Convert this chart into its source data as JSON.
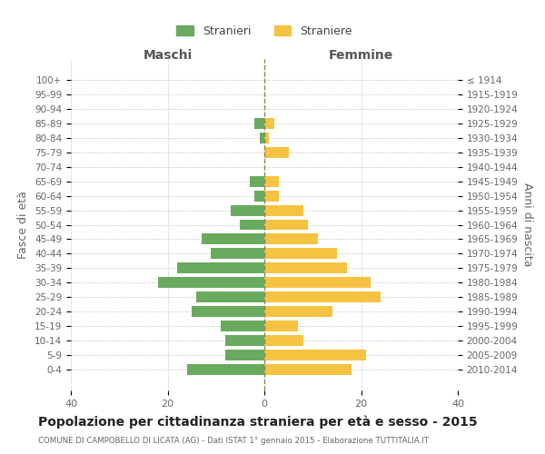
{
  "age_groups": [
    "100+",
    "95-99",
    "90-94",
    "85-89",
    "80-84",
    "75-79",
    "70-74",
    "65-69",
    "60-64",
    "55-59",
    "50-54",
    "45-49",
    "40-44",
    "35-39",
    "30-34",
    "25-29",
    "20-24",
    "15-19",
    "10-14",
    "5-9",
    "0-4"
  ],
  "birth_years": [
    "≤ 1914",
    "1915-1919",
    "1920-1924",
    "1925-1929",
    "1930-1934",
    "1935-1939",
    "1940-1944",
    "1945-1949",
    "1950-1954",
    "1955-1959",
    "1960-1964",
    "1965-1969",
    "1970-1974",
    "1975-1979",
    "1980-1984",
    "1985-1989",
    "1990-1994",
    "1995-1999",
    "2000-2004",
    "2005-2009",
    "2010-2014"
  ],
  "males": [
    0,
    0,
    0,
    2,
    1,
    0,
    0,
    3,
    2,
    7,
    5,
    13,
    11,
    18,
    22,
    14,
    15,
    9,
    8,
    8,
    16
  ],
  "females": [
    0,
    0,
    0,
    2,
    1,
    5,
    0,
    3,
    3,
    8,
    9,
    11,
    15,
    17,
    22,
    24,
    14,
    7,
    8,
    21,
    18
  ],
  "male_color": "#6aaa5e",
  "female_color": "#f5c242",
  "background_color": "#ffffff",
  "grid_color": "#cccccc",
  "title": "Popolazione per cittadinanza straniera per età e sesso - 2015",
  "subtitle": "COMUNE DI CAMPOBELLO DI LICATA (AG) - Dati ISTAT 1° gennaio 2015 - Elaborazione TUTTITALIA.IT",
  "ylabel_left": "Fasce di età",
  "ylabel_right": "Anni di nascita",
  "xlabel_left": "Maschi",
  "xlabel_right": "Femmine",
  "legend_male": "Stranieri",
  "legend_female": "Straniere",
  "xlim": 40,
  "bar_height": 0.75
}
